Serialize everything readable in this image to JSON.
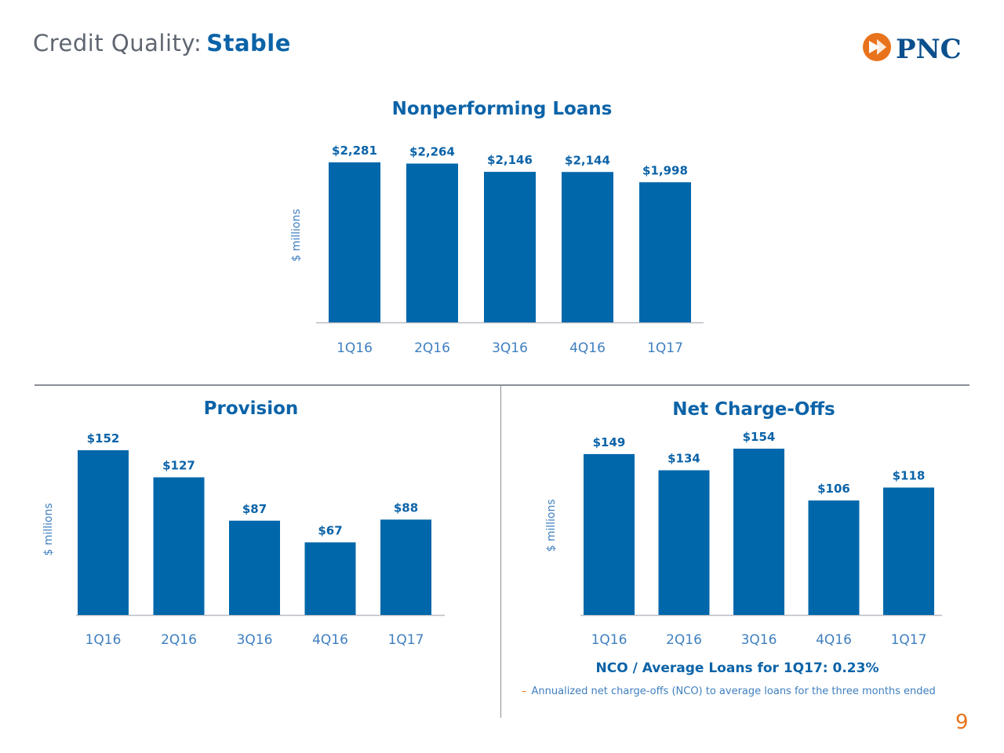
{
  "page": {
    "title_prefix": "Credit Quality:",
    "title_accent": "Stable",
    "logo_text": "PNC",
    "page_number": "9",
    "nco_note": "NCO / Average Loans for 1Q17: 0.23%",
    "footnote_dash": "–",
    "footnote": "Annualized net charge-offs (NCO) to average loans for the three months ended"
  },
  "colors": {
    "bar": "#0067ab",
    "accent": "#0b63a8",
    "orange": "#e8731c",
    "axis": "#b8bcc2"
  },
  "chart_data": [
    {
      "id": "npl",
      "type": "bar",
      "title": "Nonperforming Loans",
      "ylabel": "$ millions",
      "categories": [
        "1Q16",
        "2Q16",
        "3Q16",
        "4Q16",
        "1Q17"
      ],
      "values": [
        2281,
        2264,
        2146,
        2144,
        1998
      ],
      "labels": [
        "$2,281",
        "$2,264",
        "$2,146",
        "$2,144",
        "$1,998"
      ],
      "ylim": [
        0,
        2281
      ]
    },
    {
      "id": "provision",
      "type": "bar",
      "title": "Provision",
      "ylabel": "$ millions",
      "categories": [
        "1Q16",
        "2Q16",
        "3Q16",
        "4Q16",
        "1Q17"
      ],
      "values": [
        152,
        127,
        87,
        67,
        88
      ],
      "labels": [
        "$152",
        "$127",
        "$87",
        "$67",
        "$88"
      ],
      "ylim": [
        0,
        152
      ]
    },
    {
      "id": "nco",
      "type": "bar",
      "title": "Net Charge-Offs",
      "ylabel": "$ millions",
      "categories": [
        "1Q16",
        "2Q16",
        "3Q16",
        "4Q16",
        "1Q17"
      ],
      "values": [
        149,
        134,
        154,
        106,
        118
      ],
      "labels": [
        "$149",
        "$134",
        "$154",
        "$106",
        "$118"
      ],
      "ylim": [
        0,
        154
      ]
    }
  ]
}
